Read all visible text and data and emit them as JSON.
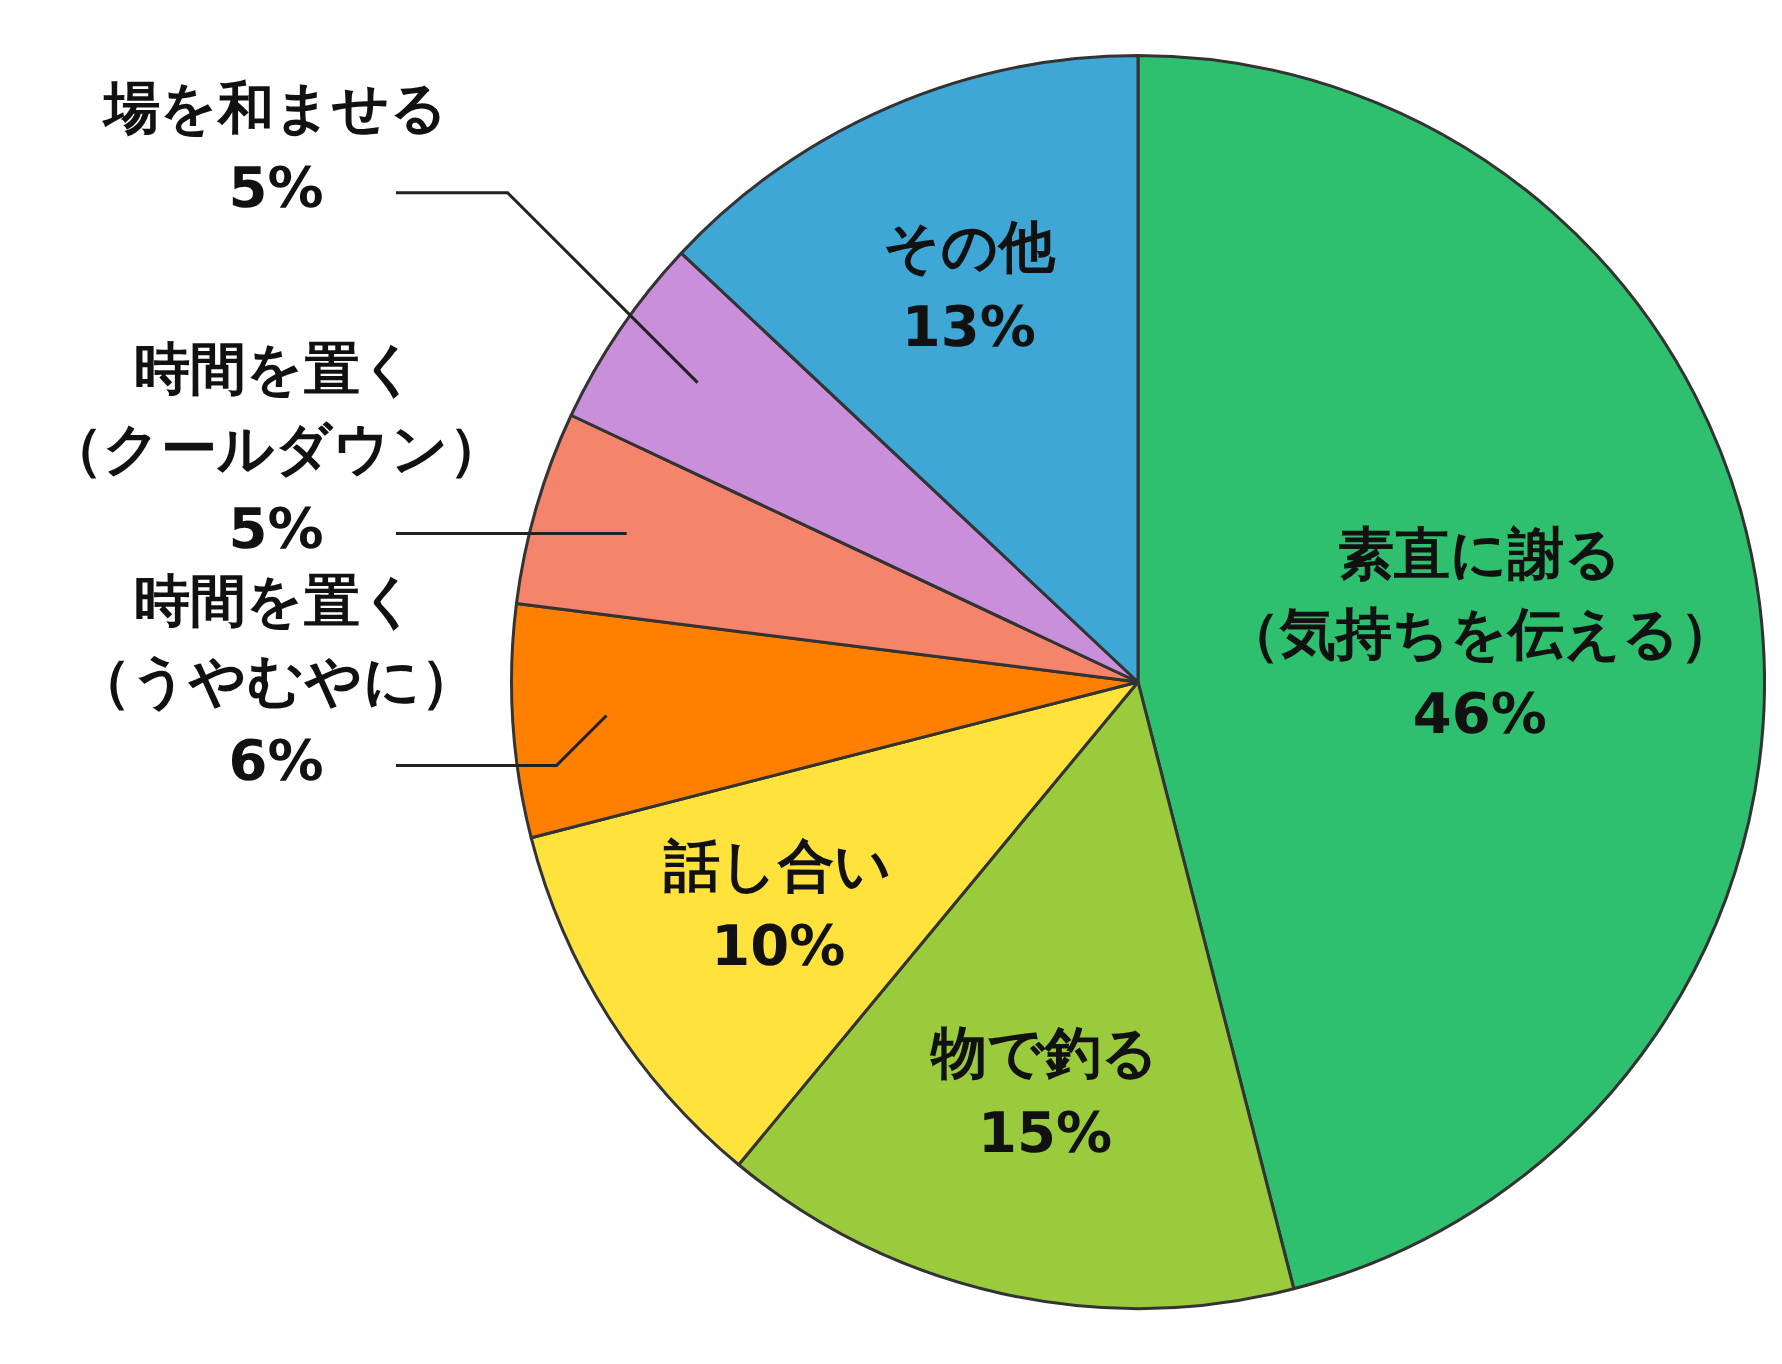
{
  "chart_data": {
    "type": "pie",
    "categories": [
      "素直に謝る（気持ちを伝える）",
      "物で釣る",
      "話し合い",
      "時間を置く（うやむやに）",
      "時間を置く（クールダウン）",
      "場を和ませる",
      "その他"
    ],
    "values": [
      46,
      15,
      10,
      6,
      5,
      5,
      13
    ],
    "value_labels": [
      "46%",
      "15%",
      "10%",
      "6%",
      "5%",
      "5%",
      "13%"
    ],
    "colors": [
      "#2fc06f",
      "#9acb3d",
      "#ffe23c",
      "#ff8000",
      "#f4846c",
      "#c98fdb",
      "#3ea7d6"
    ],
    "legend": false
  }
}
